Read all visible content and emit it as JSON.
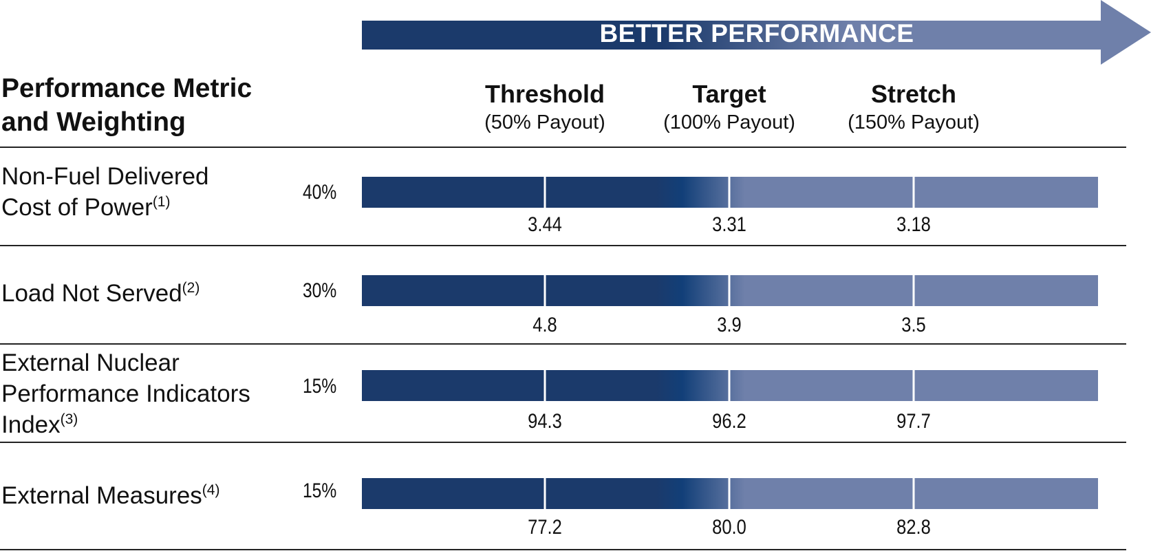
{
  "arrow": {
    "label": "BETTER PERFORMANCE",
    "color_dark": "#1b3a6b",
    "color_light": "#6f80aa"
  },
  "header": {
    "metric_line1": "Performance Metric",
    "metric_line2": "and Weighting"
  },
  "chart_data": {
    "type": "table",
    "columns": [
      {
        "title": "Threshold",
        "subtitle": "(50% Payout)"
      },
      {
        "title": "Target",
        "subtitle": "(100% Payout)"
      },
      {
        "title": "Stretch",
        "subtitle": "(150% Payout)"
      }
    ],
    "rows": [
      {
        "label_lines": [
          "Non-Fuel Delivered",
          "Cost of Power"
        ],
        "footnote": "(1)",
        "weight": "40%",
        "values": [
          "3.44",
          "3.31",
          "3.18"
        ]
      },
      {
        "label_lines": [
          "Load Not Served"
        ],
        "footnote": "(2)",
        "weight": "30%",
        "values": [
          "4.8",
          "3.9",
          "3.5"
        ]
      },
      {
        "label_lines": [
          "External Nuclear",
          "Performance Indicators",
          "Index"
        ],
        "footnote": "(3)",
        "weight": "15%",
        "values": [
          "94.3",
          "96.2",
          "97.7"
        ]
      },
      {
        "label_lines": [
          "External Measures"
        ],
        "footnote": "(4)",
        "weight": "15%",
        "values": [
          "77.2",
          "80.0",
          "82.8"
        ]
      }
    ]
  }
}
